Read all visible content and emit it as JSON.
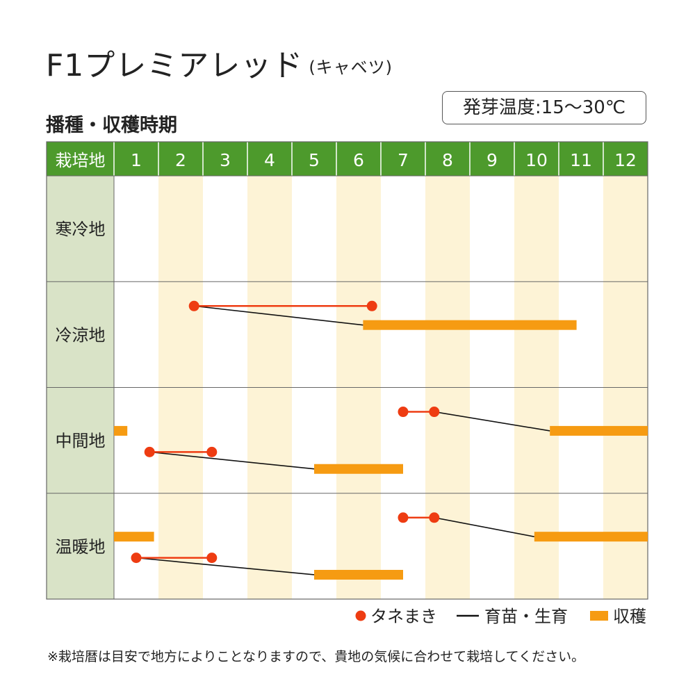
{
  "title": "F1プレミアレッド",
  "title_sub": "(キャベツ)",
  "subtitle": "播種・収穫時期",
  "germination": "発芽温度:15～30℃",
  "note": "※栽培暦は目安で地方によりことなりますので、貴地の気候に合わせて栽培してください。",
  "colors": {
    "header": "#4d9a2c",
    "label_bg": "#d9e3c7",
    "stripe": "#fdf3d6",
    "sow": "#ee3c12",
    "grow": "#111111",
    "harvest": "#f69b12"
  },
  "chart_data": {
    "type": "gantt",
    "header_label": "栽培地",
    "x_labels": [
      "1",
      "2",
      "3",
      "4",
      "5",
      "6",
      "7",
      "8",
      "9",
      "10",
      "11",
      "12"
    ],
    "x_range": [
      1,
      13
    ],
    "regions": [
      "寒冷地",
      "冷涼地",
      "中間地",
      "温暖地"
    ],
    "legend": [
      {
        "key": "sow",
        "label": "タネまき"
      },
      {
        "key": "grow",
        "label": "育苗・生育"
      },
      {
        "key": "harvest",
        "label": "収穫"
      }
    ],
    "legend_position": "bottom-right",
    "schedules": [
      {
        "region": "冷涼地",
        "sow": [
          2.8,
          6.8
        ],
        "grow": [
          2.8,
          6.6
        ],
        "harvest": [
          6.6,
          11.4
        ]
      },
      {
        "region": "中間地",
        "sow": [
          7.5,
          8.2
        ],
        "grow": [
          8.2,
          10.8
        ],
        "harvest": [
          10.8,
          13.0
        ]
      },
      {
        "region": "中間地",
        "harvest": [
          1.0,
          1.3
        ]
      },
      {
        "region": "中間地",
        "sow": [
          1.8,
          3.2
        ],
        "grow": [
          1.8,
          5.5
        ],
        "harvest": [
          5.5,
          7.5
        ]
      },
      {
        "region": "温暖地",
        "sow": [
          7.5,
          8.2
        ],
        "grow": [
          8.2,
          10.45
        ],
        "harvest": [
          10.45,
          13.0
        ]
      },
      {
        "region": "温暖地",
        "harvest": [
          1.0,
          1.9
        ]
      },
      {
        "region": "温暖地",
        "sow": [
          1.5,
          3.2
        ],
        "grow": [
          1.5,
          5.5
        ],
        "harvest": [
          5.5,
          7.5
        ]
      }
    ]
  }
}
